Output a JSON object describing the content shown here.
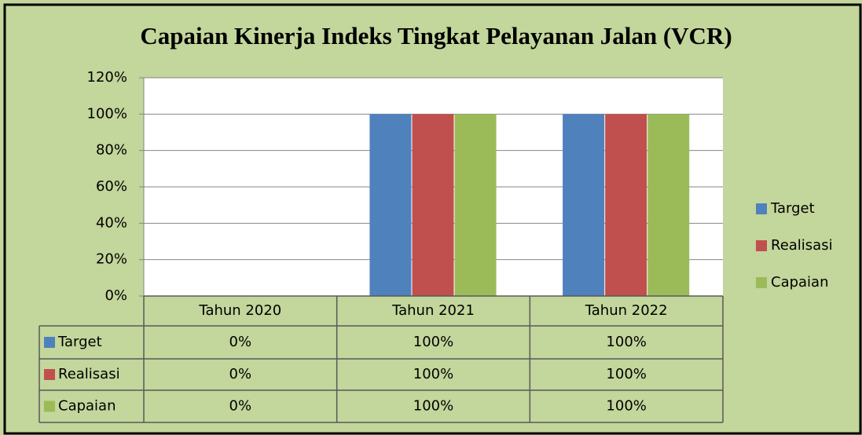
{
  "chart_data": {
    "type": "bar",
    "title": "Capaian Kinerja Indeks Tingkat Pelayanan Jalan (VCR)",
    "categories": [
      "Tahun 2020",
      "Tahun 2021",
      "Tahun 2022"
    ],
    "series": [
      {
        "name": "Target",
        "color": "#4f81bd",
        "values": [
          0,
          100,
          100
        ],
        "value_labels": [
          "0%",
          "100%",
          "100%"
        ]
      },
      {
        "name": "Realisasi",
        "color": "#c0504d",
        "values": [
          0,
          100,
          100
        ],
        "value_labels": [
          "0%",
          "100%",
          "100%"
        ]
      },
      {
        "name": "Capaian",
        "color": "#9bbb59",
        "values": [
          0,
          100,
          100
        ],
        "value_labels": [
          "0%",
          "100%",
          "100%"
        ]
      }
    ],
    "ylim": [
      0,
      120
    ],
    "yticks": [
      {
        "value": 0,
        "label": "0%"
      },
      {
        "value": 20,
        "label": "20%"
      },
      {
        "value": 40,
        "label": "40%"
      },
      {
        "value": 60,
        "label": "60%"
      },
      {
        "value": 80,
        "label": "80%"
      },
      {
        "value": 100,
        "label": "100%"
      },
      {
        "value": 120,
        "label": "120%"
      }
    ],
    "grid": true,
    "legend": "right"
  }
}
